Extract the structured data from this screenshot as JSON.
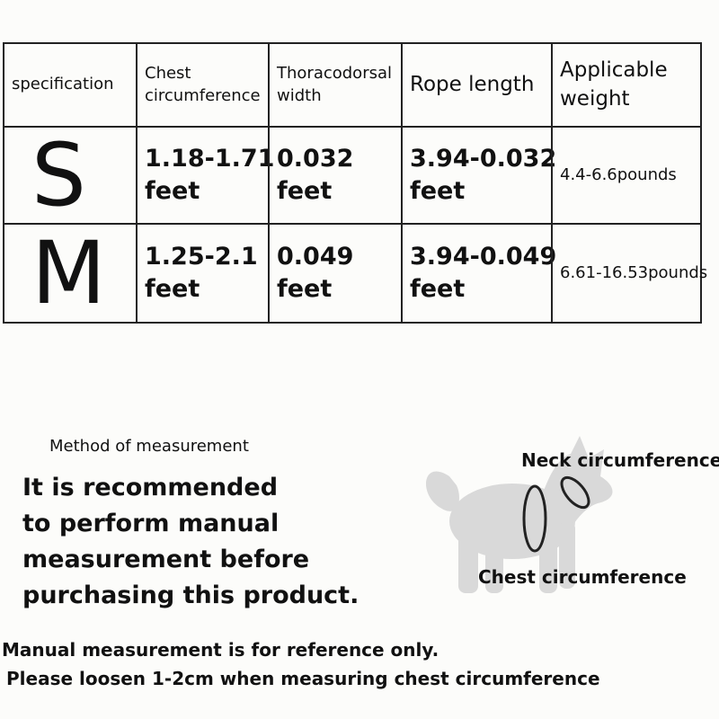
{
  "table": {
    "header": [
      [
        "specification"
      ],
      [
        "Chest",
        "circumference"
      ],
      [
        "Thoracodorsal",
        "width"
      ],
      [
        "Rope length"
      ],
      [
        "Applicable",
        "weight"
      ]
    ],
    "rows": [
      [
        [
          "S"
        ],
        [
          "1.18-1.71",
          "feet"
        ],
        [
          "0.032",
          "feet"
        ],
        [
          "3.94-0.032",
          "feet"
        ],
        [
          "4.4-6.6pounds"
        ]
      ],
      [
        [
          "M"
        ],
        [
          "1.25-2.1",
          "feet"
        ],
        [
          "0.049",
          "feet"
        ],
        [
          "3.94-0.049",
          "feet"
        ],
        [
          "6.61-16.53pounds"
        ]
      ]
    ]
  },
  "measurement": {
    "heading": "Method of measurement",
    "recommendation": [
      "It is recommended",
      "to perform manual",
      "measurement before",
      "purchasing this product."
    ]
  },
  "diagram": {
    "neck_label": "Neck circumference",
    "chest_label": "Chest circumference"
  },
  "notes": [
    "Manual measurement is for reference only.",
    "Please loosen 1-2cm when measuring chest circumference"
  ]
}
